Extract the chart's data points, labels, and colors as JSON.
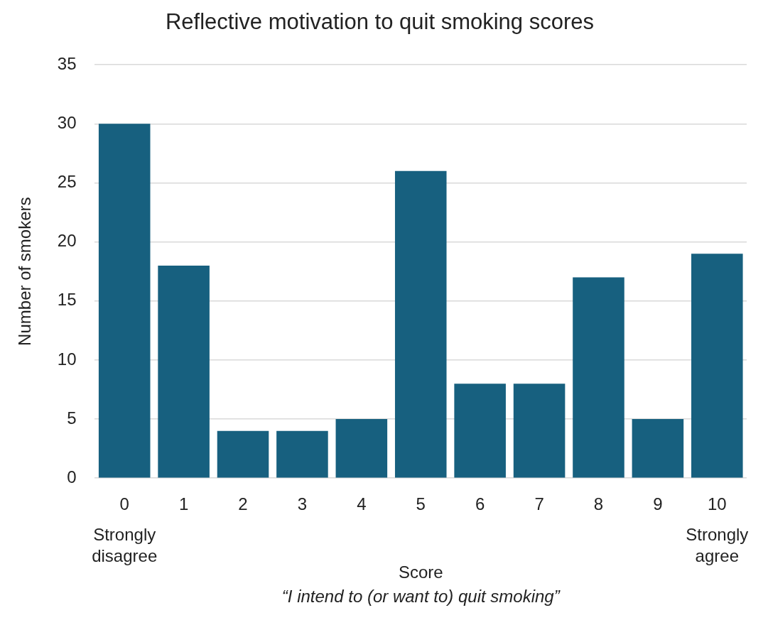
{
  "chart_data": {
    "type": "bar",
    "title": "Reflective motivation to quit smoking scores",
    "xlabel": "Score",
    "ylabel": "Number of smokers",
    "categories": [
      "0",
      "1",
      "2",
      "3",
      "4",
      "5",
      "6",
      "7",
      "8",
      "9",
      "10"
    ],
    "values": [
      30,
      18,
      4,
      4,
      5,
      26,
      8,
      8,
      17,
      5,
      19
    ],
    "color": "#17607f",
    "ylim": [
      0,
      35
    ],
    "yticks": [
      0,
      5,
      10,
      15,
      20,
      25,
      30,
      35
    ],
    "grid": "y",
    "legend": false,
    "annotations": [
      "Strongly disagree",
      "Strongly agree",
      "“I intend to (or want to) quit smoking”"
    ]
  }
}
